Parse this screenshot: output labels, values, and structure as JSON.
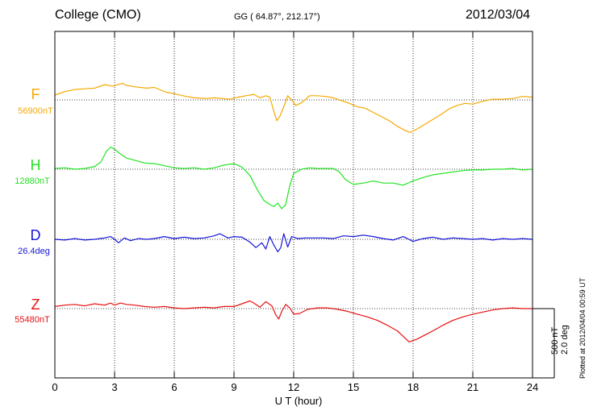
{
  "header": {
    "station": "College (CMO)",
    "coords": "GG ( 64.87°, 212.17°)",
    "date": "2012/03/04"
  },
  "plotted_note": "Plotted at 2012/04/04 00:59 UT",
  "scale": {
    "nt": "500 nT",
    "deg": "2.0 deg"
  },
  "chart_data": {
    "type": "line",
    "xlabel": "U T (hour)",
    "xlim": [
      0,
      24
    ],
    "xticks": [
      "0",
      "3",
      "6",
      "9",
      "12",
      "15",
      "18",
      "21",
      "24"
    ],
    "grid": true,
    "series": [
      {
        "name": "F",
        "baseline": "56900nT",
        "color": "#f5a800",
        "x": [
          0,
          0.5,
          1,
          1.5,
          2,
          2.5,
          2.9,
          3.4,
          3.6,
          4,
          4.6,
          5,
          5.6,
          6,
          6.6,
          7,
          7.6,
          8,
          8.4,
          8.8,
          9.2,
          9.6,
          10,
          10.3,
          10.6,
          10.8,
          11,
          11.15,
          11.3,
          11.5,
          11.7,
          11.9,
          12.1,
          12.4,
          12.8,
          13.2,
          13.6,
          14,
          14.4,
          14.8,
          15.2,
          15.6,
          16,
          16.4,
          16.8,
          17.2,
          17.6,
          17.85,
          18.2,
          18.6,
          19,
          19.4,
          19.8,
          20.2,
          20.6,
          21,
          21.5,
          22,
          22.5,
          23,
          23.5,
          24
        ],
        "y": [
          35,
          60,
          75,
          80,
          85,
          110,
          100,
          120,
          105,
          95,
          85,
          90,
          55,
          45,
          25,
          15,
          10,
          15,
          10,
          5,
          20,
          30,
          40,
          15,
          30,
          20,
          -80,
          -150,
          -120,
          -50,
          30,
          0,
          -40,
          -20,
          30,
          30,
          25,
          15,
          -5,
          -25,
          -50,
          -60,
          -90,
          -120,
          -150,
          -190,
          -220,
          -235,
          -210,
          -175,
          -140,
          -105,
          -65,
          -40,
          -25,
          -30,
          -10,
          5,
          5,
          10,
          25,
          20
        ]
      },
      {
        "name": "H",
        "baseline": "12880nT",
        "color": "#22e322",
        "x": [
          0,
          0.5,
          1,
          1.5,
          2,
          2.3,
          2.6,
          2.8,
          3,
          3.3,
          3.6,
          4,
          4.5,
          5,
          5.5,
          6,
          6.5,
          7,
          7.5,
          8,
          8.5,
          9,
          9.4,
          9.8,
          10.2,
          10.5,
          10.8,
          11,
          11.2,
          11.4,
          11.6,
          11.8,
          12,
          12.4,
          12.8,
          13.2,
          13.6,
          14,
          14.3,
          14.6,
          15,
          15.5,
          16,
          16.5,
          17,
          17.5,
          18,
          18.5,
          19,
          19.5,
          20,
          20.5,
          21,
          21.5,
          22,
          22.5,
          23,
          23.5,
          24
        ],
        "y": [
          5,
          10,
          0,
          5,
          20,
          50,
          130,
          160,
          145,
          110,
          80,
          65,
          45,
          40,
          25,
          10,
          5,
          10,
          0,
          10,
          30,
          40,
          15,
          -45,
          -155,
          -225,
          -255,
          -270,
          -245,
          -285,
          -255,
          -120,
          -30,
          0,
          10,
          5,
          5,
          5,
          -20,
          -75,
          -110,
          -100,
          -85,
          -100,
          -100,
          -115,
          -85,
          -60,
          -40,
          -30,
          -20,
          -10,
          -5,
          -5,
          0,
          0,
          5,
          -5,
          0
        ]
      },
      {
        "name": "D",
        "baseline": "26.4deg",
        "color": "#1515d8",
        "x": [
          0,
          0.5,
          1,
          1.5,
          2,
          2.5,
          2.8,
          3,
          3.2,
          3.5,
          3.8,
          4.2,
          4.6,
          5,
          5.5,
          6,
          6.5,
          7,
          7.5,
          8,
          8.3,
          8.7,
          9,
          9.4,
          9.8,
          10.1,
          10.4,
          10.6,
          10.8,
          11,
          11.2,
          11.35,
          11.5,
          11.7,
          11.9,
          12.2,
          12.6,
          13,
          13.5,
          14,
          14.5,
          15,
          15.5,
          16,
          16.5,
          17,
          17.5,
          18,
          18.5,
          19,
          19.5,
          20,
          20.5,
          21,
          21.5,
          22,
          22.5,
          23,
          23.5,
          24
        ],
        "y": [
          0,
          -5,
          5,
          -5,
          0,
          10,
          20,
          0,
          -25,
          10,
          -10,
          5,
          0,
          5,
          20,
          5,
          15,
          5,
          10,
          25,
          40,
          10,
          20,
          15,
          -20,
          -60,
          -25,
          -70,
          20,
          -40,
          -90,
          -60,
          40,
          -55,
          20,
          5,
          10,
          10,
          10,
          5,
          25,
          20,
          30,
          20,
          5,
          -5,
          20,
          -15,
          5,
          15,
          0,
          10,
          5,
          0,
          5,
          -5,
          5,
          0,
          5,
          0
        ]
      },
      {
        "name": "Z",
        "baseline": "55480nT",
        "color": "#e81010",
        "x": [
          0,
          0.5,
          1,
          1.5,
          2,
          2.5,
          2.8,
          3,
          3.3,
          3.6,
          4,
          4.5,
          5,
          5.5,
          6,
          6.5,
          7,
          7.5,
          8,
          8.5,
          9,
          9.4,
          9.8,
          10,
          10.3,
          10.6,
          10.9,
          11.1,
          11.25,
          11.4,
          11.6,
          11.8,
          12,
          12.3,
          12.7,
          13.2,
          13.7,
          14.2,
          14.7,
          15.2,
          15.7,
          16.2,
          16.7,
          17.2,
          17.5,
          17.8,
          18.2,
          18.6,
          19,
          19.5,
          20,
          20.5,
          21,
          21.5,
          22,
          22.5,
          23,
          23.5,
          24
        ],
        "y": [
          15,
          25,
          30,
          20,
          35,
          25,
          40,
          25,
          40,
          30,
          25,
          15,
          10,
          15,
          5,
          0,
          5,
          10,
          5,
          15,
          15,
          35,
          55,
          40,
          10,
          50,
          20,
          -45,
          -75,
          -20,
          30,
          5,
          -40,
          -35,
          -5,
          5,
          5,
          -5,
          -20,
          -40,
          -60,
          -85,
          -120,
          -160,
          -200,
          -240,
          -220,
          -190,
          -160,
          -120,
          -85,
          -60,
          -40,
          -25,
          -10,
          0,
          5,
          0,
          0
        ]
      }
    ]
  }
}
